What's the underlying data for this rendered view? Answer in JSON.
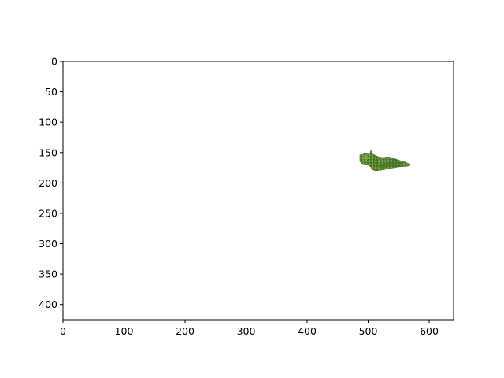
{
  "image": {
    "x_ticks": [
      "0",
      "100",
      "200",
      "300",
      "400",
      "500",
      "600"
    ],
    "y_ticks": [
      "0",
      "50",
      "100",
      "150",
      "200",
      "250",
      "300",
      "350",
      "400"
    ],
    "extent": {
      "x": [
        0,
        640
      ],
      "y": [
        425,
        0
      ]
    },
    "content": {
      "description": "Small green vegetation-like cutout patch (leaf/moss texture) on white background",
      "colors": [
        "#4f7a2c",
        "#6a9a3a",
        "#3c5e22",
        "#8bb25a"
      ]
    }
  }
}
